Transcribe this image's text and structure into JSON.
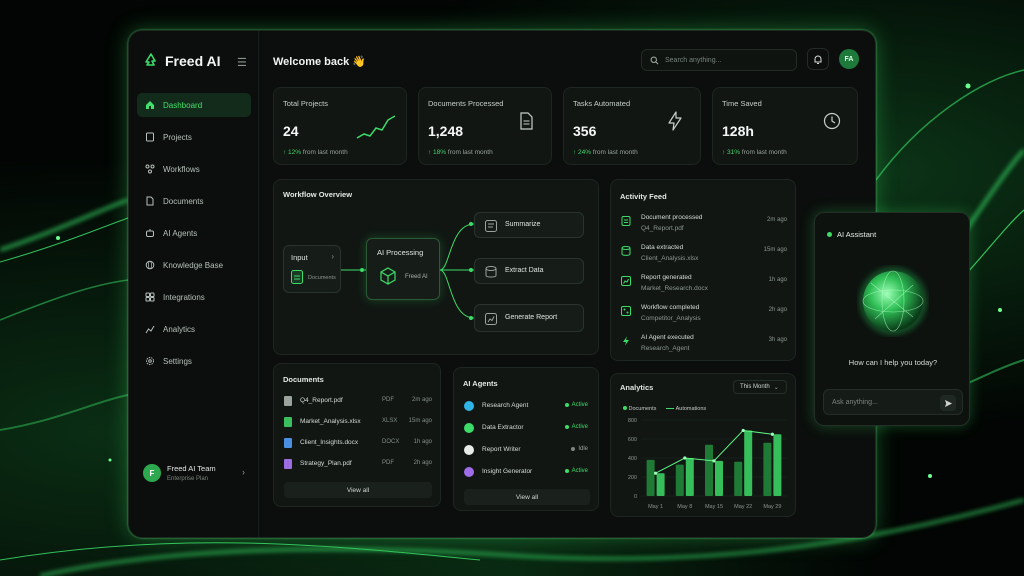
{
  "brand": {
    "name": "Freed AI",
    "accent": "#3ddc68"
  },
  "header": {
    "welcome": "Welcome back 👋",
    "search_placeholder": "Search anything...",
    "avatar_initials": "FA"
  },
  "sidebar": {
    "items": [
      {
        "label": "Dashboard",
        "icon": "home-icon",
        "active": true
      },
      {
        "label": "Projects",
        "icon": "folder-icon"
      },
      {
        "label": "Workflows",
        "icon": "workflow-icon"
      },
      {
        "label": "Documents",
        "icon": "document-icon"
      },
      {
        "label": "AI Agents",
        "icon": "robot-icon"
      },
      {
        "label": "Knowledge Base",
        "icon": "globe-icon"
      },
      {
        "label": "Integrations",
        "icon": "integration-icon"
      },
      {
        "label": "Analytics",
        "icon": "analytics-icon"
      },
      {
        "label": "Settings",
        "icon": "gear-icon"
      }
    ],
    "team": {
      "initial": "F",
      "name": "Freed AI Team",
      "plan": "Enterprise Plan"
    }
  },
  "stats": [
    {
      "label": "Total Projects",
      "value": "24",
      "change": "↑ 12%",
      "suffix": "from last month",
      "icon": "trend-chart-icon"
    },
    {
      "label": "Documents Processed",
      "value": "1,248",
      "change": "↑ 18%",
      "suffix": "from last month",
      "icon": "document-icon"
    },
    {
      "label": "Tasks Automated",
      "value": "356",
      "change": "↑ 24%",
      "suffix": "from last month",
      "icon": "lightning-icon"
    },
    {
      "label": "Time Saved",
      "value": "128h",
      "change": "↑ 31%",
      "suffix": "from last month",
      "icon": "clock-icon"
    }
  ],
  "workflow": {
    "title": "Workflow Overview",
    "input": {
      "label": "Input",
      "sub": "Documents"
    },
    "processing": {
      "label": "AI Processing",
      "sub": "Freed AI"
    },
    "outputs": [
      {
        "label": "Summarize",
        "icon": "summarize-icon"
      },
      {
        "label": "Extract Data",
        "icon": "database-icon"
      },
      {
        "label": "Generate Report",
        "icon": "report-icon"
      }
    ]
  },
  "activity": {
    "title": "Activity Feed",
    "items": [
      {
        "title": "Document processed",
        "detail": "Q4_Report.pdf",
        "time": "2m ago"
      },
      {
        "title": "Data extracted",
        "detail": "Client_Analysis.xlsx",
        "time": "15m ago"
      },
      {
        "title": "Report generated",
        "detail": "Market_Research.docx",
        "time": "1h ago"
      },
      {
        "title": "Workflow completed",
        "detail": "Competitor_Analysis",
        "time": "2h ago"
      },
      {
        "title": "AI Agent executed",
        "detail": "Research_Agent",
        "time": "3h ago"
      }
    ]
  },
  "documents": {
    "title": "Documents",
    "items": [
      {
        "name": "Q4_Report.pdf",
        "type": "PDF",
        "time": "2m ago",
        "color": "#9aa39c"
      },
      {
        "name": "Market_Analysis.xlsx",
        "type": "XLSX",
        "time": "15m ago",
        "color": "#3bbf5e"
      },
      {
        "name": "Client_Insights.docx",
        "type": "DOCX",
        "time": "1h ago",
        "color": "#4a8fe0"
      },
      {
        "name": "Strategy_Plan.pdf",
        "type": "PDF",
        "time": "2h ago",
        "color": "#9b6de0"
      }
    ],
    "view_all": "View all"
  },
  "agents": {
    "title": "AI Agents",
    "items": [
      {
        "name": "Research Agent",
        "status": "Active",
        "color": "#2fb4e8"
      },
      {
        "name": "Data Extractor",
        "status": "Active",
        "color": "#3ddc68"
      },
      {
        "name": "Report Writer",
        "status": "Idle",
        "color": "#e8ece9"
      },
      {
        "name": "Insight Generator",
        "status": "Active",
        "color": "#a06de8"
      }
    ],
    "view_all": "View all"
  },
  "analytics": {
    "title": "Analytics",
    "period": "This Month"
  },
  "chart_data": {
    "type": "bar",
    "categories": [
      "May 1",
      "May 8",
      "May 15",
      "May 22",
      "May 29"
    ],
    "series": [
      {
        "name": "Documents",
        "values": [
          380,
          330,
          540,
          360,
          560
        ]
      },
      {
        "name": "Automations",
        "values": [
          240,
          400,
          370,
          690,
          650
        ]
      }
    ],
    "yticks": [
      0,
      200,
      400,
      600,
      800
    ],
    "ylim": [
      0,
      800
    ],
    "legend": "top-left"
  },
  "assistant": {
    "title": "AI Assistant",
    "prompt": "How can I help you today?",
    "input_placeholder": "Ask anything..."
  }
}
